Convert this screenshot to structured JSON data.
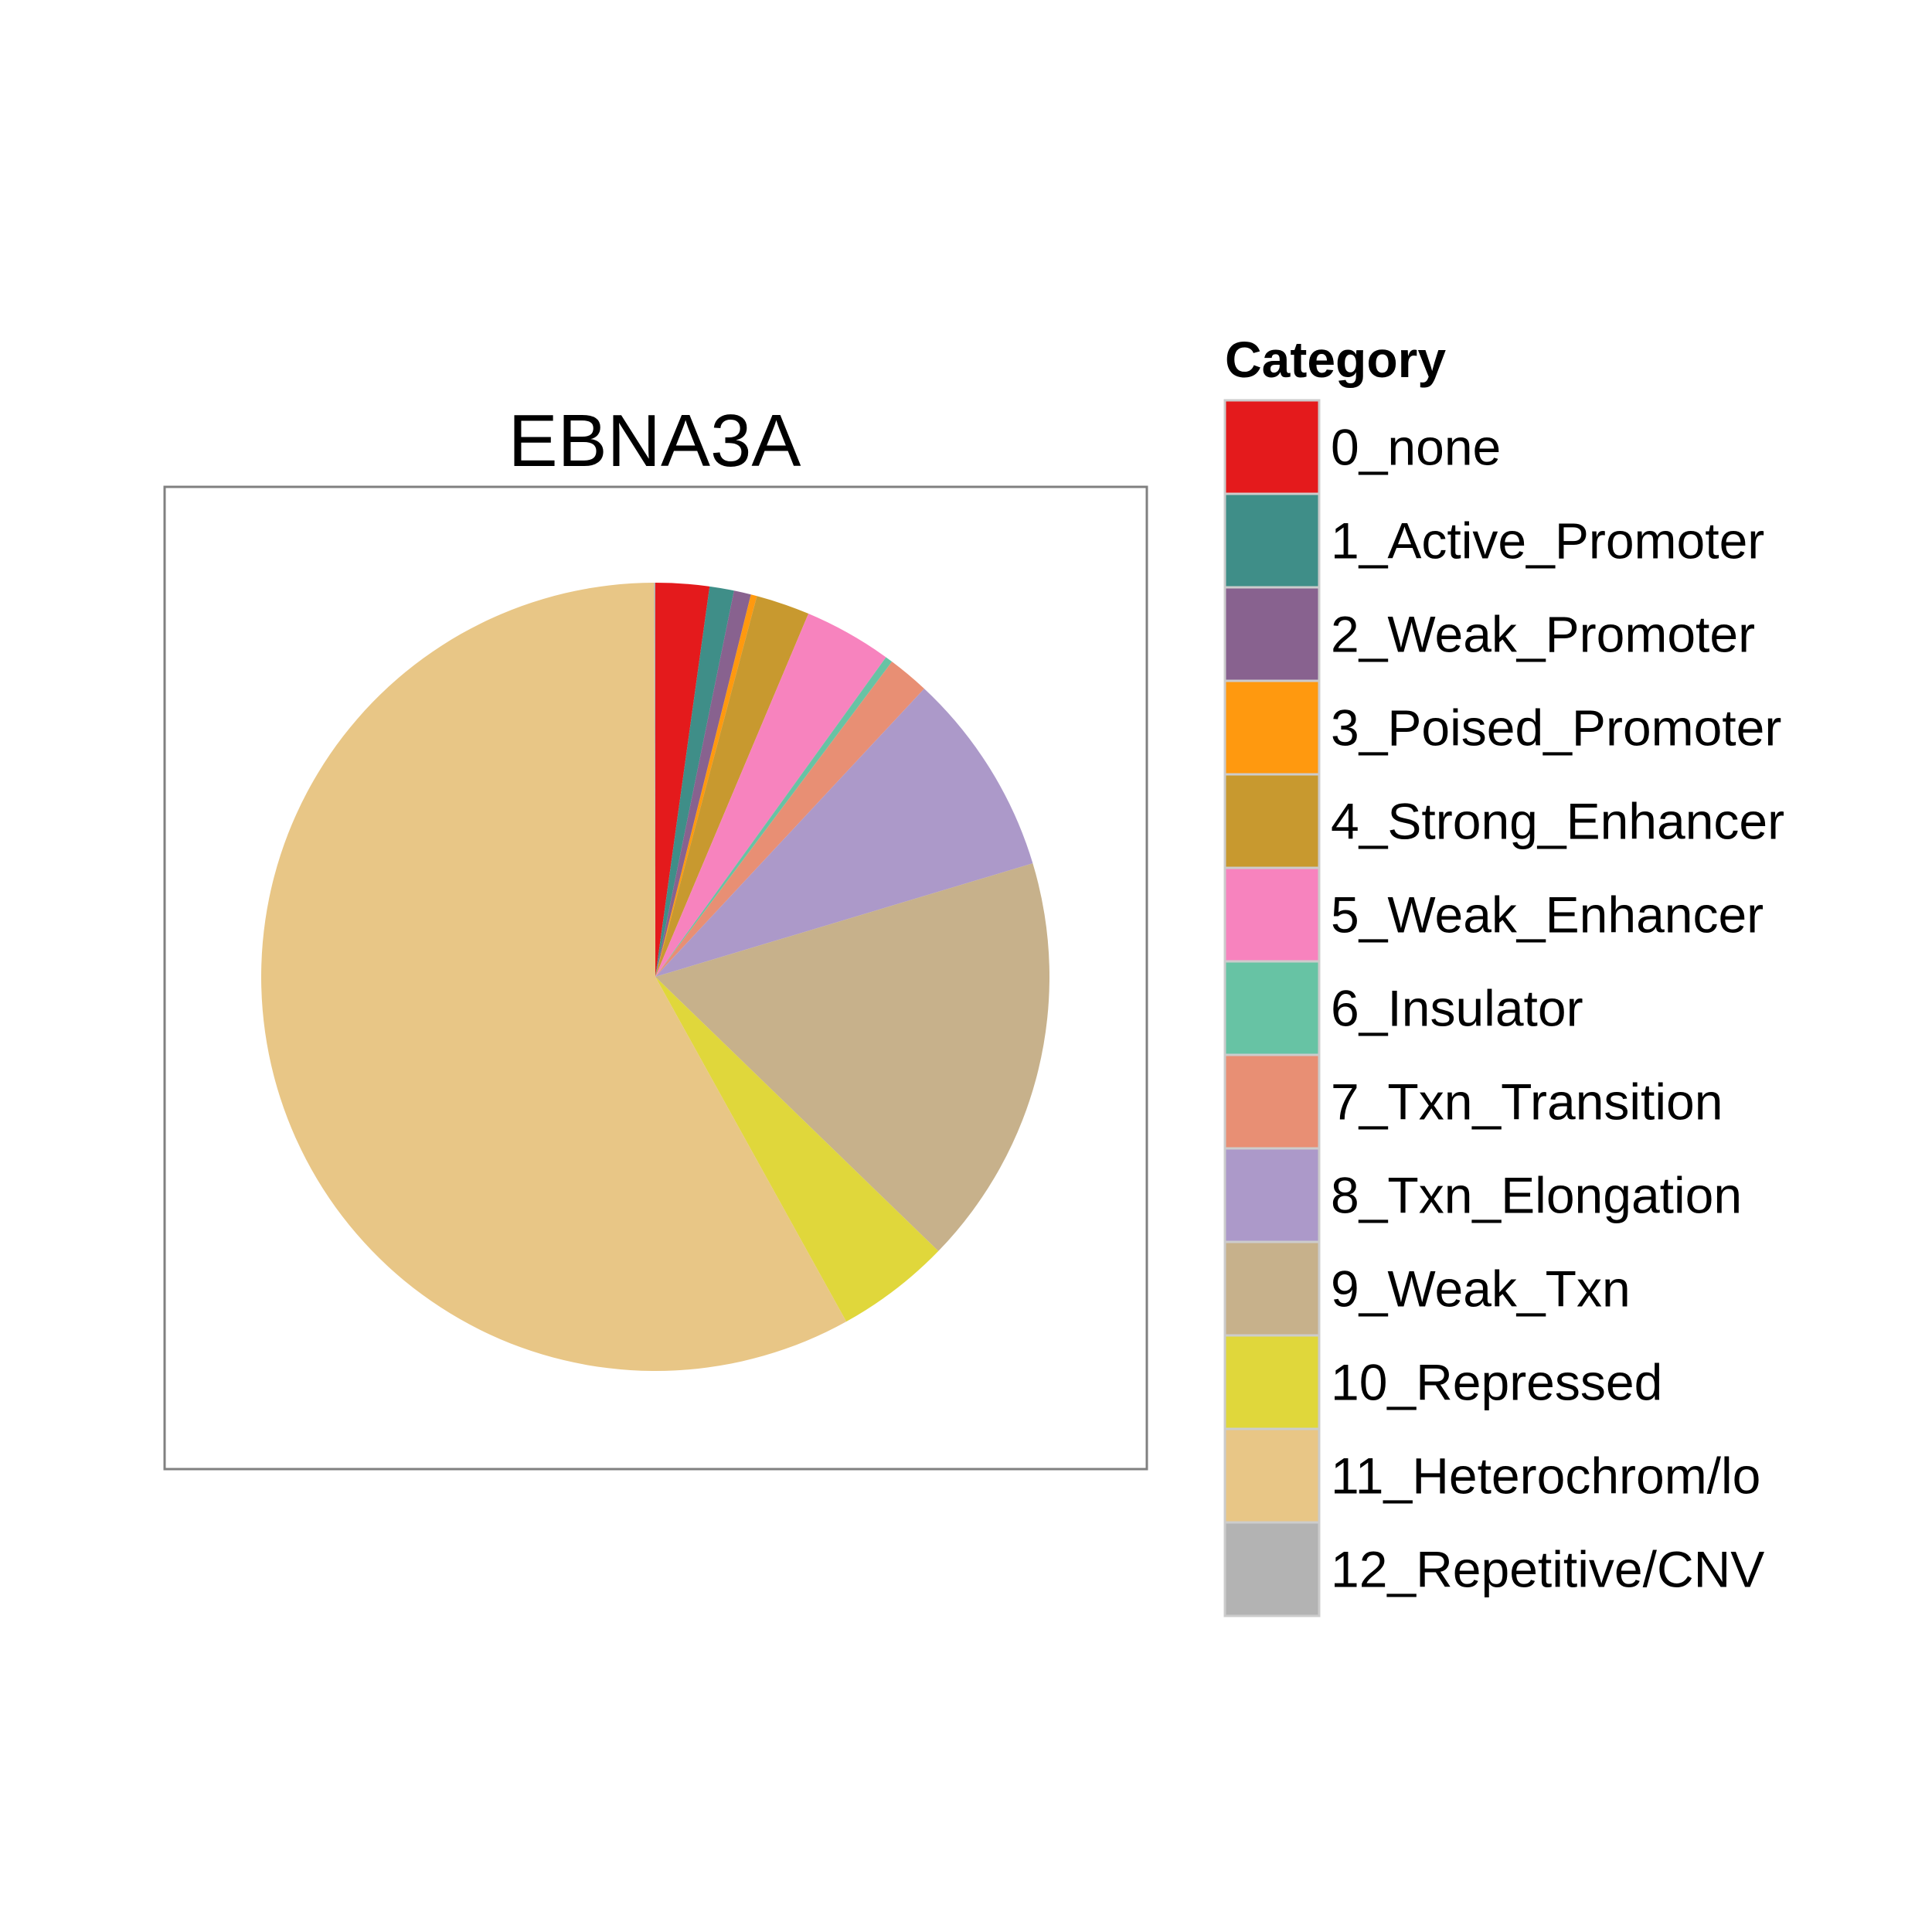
{
  "chart_data": {
    "type": "pie",
    "title": "EBNA3A",
    "legend_title": "Category",
    "legend_position": "right",
    "slices": [
      {
        "label": "0_none",
        "value": 2.2,
        "color": "#E41A1C"
      },
      {
        "label": "1_Active_Promoter",
        "value": 1.0,
        "color": "#3F8E88"
      },
      {
        "label": "2_Weak_Promoter",
        "value": 0.7,
        "color": "#88628F"
      },
      {
        "label": "3_Poised_Promoter",
        "value": 0.25,
        "color": "#FF990F"
      },
      {
        "label": "4_Strong_Enhancer",
        "value": 2.2,
        "color": "#C8992F"
      },
      {
        "label": "5_Weak_Enhancer",
        "value": 3.6,
        "color": "#F783BE"
      },
      {
        "label": "6_Insulator",
        "value": 0.3,
        "color": "#67C3A4"
      },
      {
        "label": "7_Txn_Transition",
        "value": 1.7,
        "color": "#E88F74"
      },
      {
        "label": "8_Txn_Elongation",
        "value": 8.4,
        "color": "#AC99C9"
      },
      {
        "label": "9_Weak_Txn",
        "value": 16.9,
        "color": "#C7B18B"
      },
      {
        "label": "10_Repressed",
        "value": 4.7,
        "color": "#E0D73B"
      },
      {
        "label": "11_Heterochrom/lo",
        "value": 58.0,
        "color": "#E8C686"
      },
      {
        "label": "12_Repetitive/CNV",
        "value": 0.05,
        "color": "#B3B3B3"
      }
    ]
  }
}
